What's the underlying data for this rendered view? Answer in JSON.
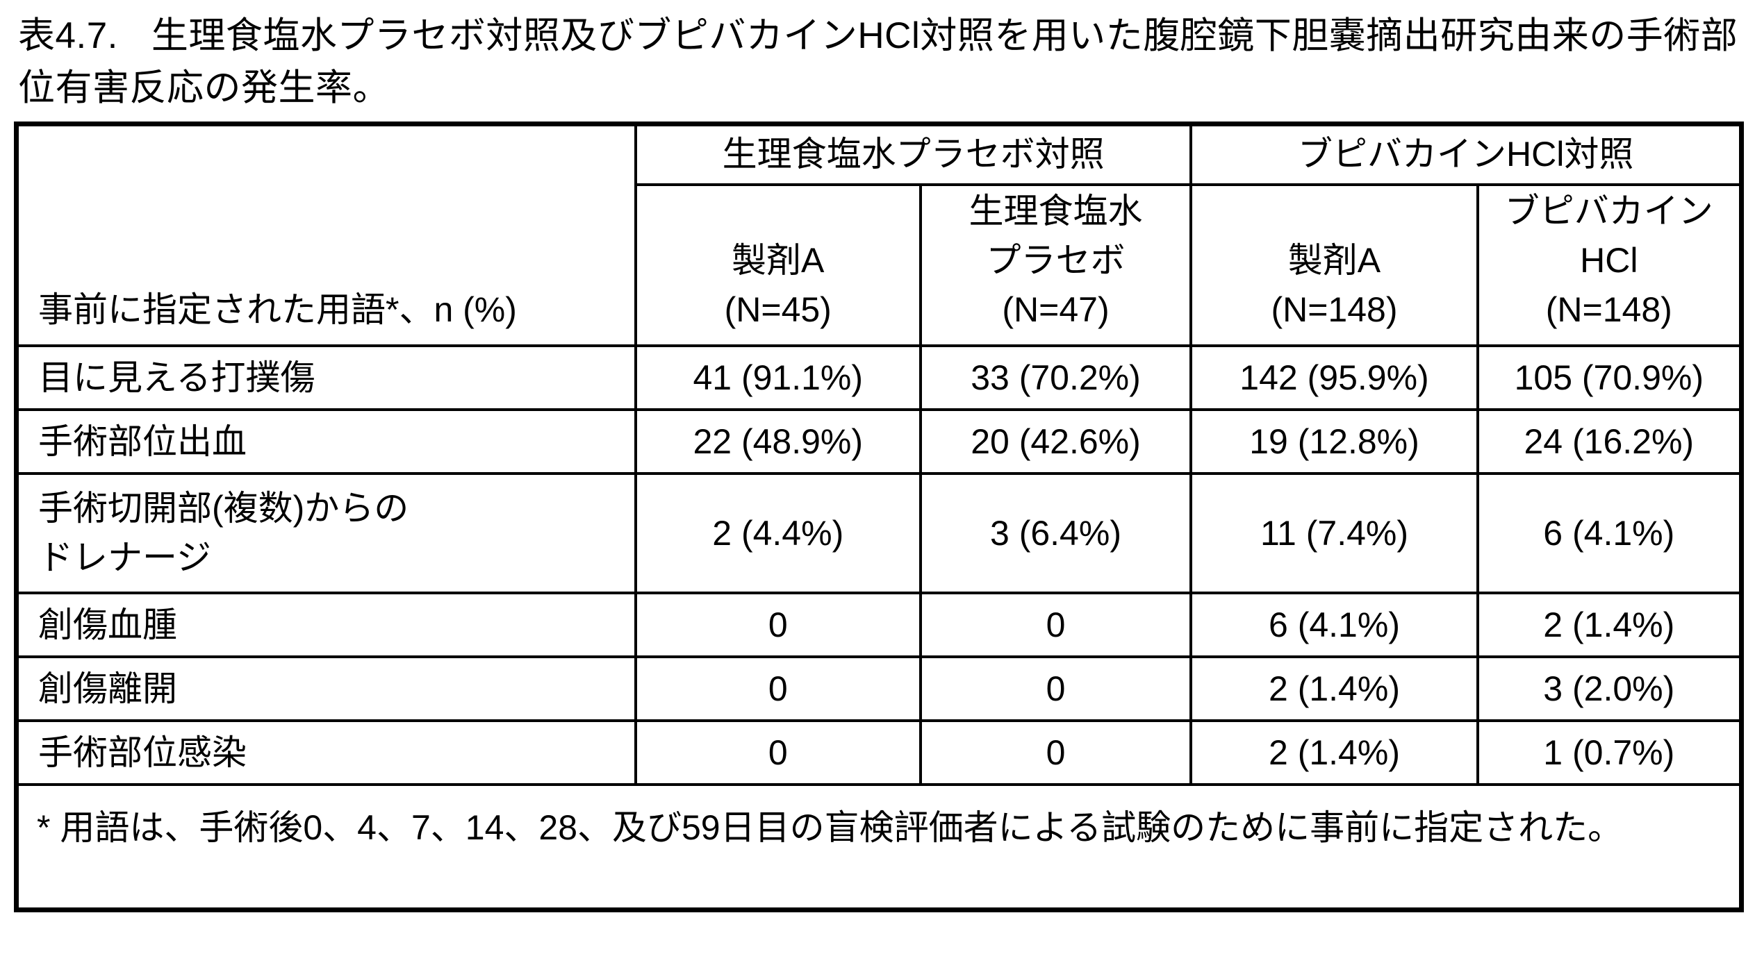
{
  "caption": {
    "label": "表4.7.",
    "text": "生理食塩水プラセボ対照及びブピバカインHCl対照を用いた腹腔鏡下胆嚢摘出研究由来の手術部位有害反応の発生率。"
  },
  "table": {
    "corner_header": "事前に指定された用語*、n (%)",
    "groups": [
      {
        "label": "生理食塩水プラセボ対照"
      },
      {
        "label": "ブピバカインHCl対照"
      }
    ],
    "column_headers": [
      "製剤A\n(N=45)",
      "生理食塩水\nプラセボ\n(N=47)",
      "製剤A\n(N=148)",
      "ブピバカイン\nHCl\n(N=148)"
    ],
    "rows": [
      {
        "label": "目に見える打撲傷",
        "values": [
          "41 (91.1%)",
          "33 (70.2%)",
          "142 (95.9%)",
          "105 (70.9%)"
        ]
      },
      {
        "label": "手術部位出血",
        "values": [
          "22 (48.9%)",
          "20 (42.6%)",
          "19 (12.8%)",
          "24 (16.2%)"
        ]
      },
      {
        "label": "手術切開部(複数)からの\nドレナージ",
        "values": [
          "2 (4.4%)",
          "3 (6.4%)",
          "11 (7.4%)",
          "6 (4.1%)"
        ]
      },
      {
        "label": "創傷血腫",
        "values": [
          "0",
          "0",
          "6 (4.1%)",
          "2 (1.4%)"
        ]
      },
      {
        "label": "創傷離開",
        "values": [
          "0",
          "0",
          "2 (1.4%)",
          "3 (2.0%)"
        ]
      },
      {
        "label": "手術部位感染",
        "values": [
          "0",
          "0",
          "2 (1.4%)",
          "1 (0.7%)"
        ]
      }
    ],
    "footnote": "* 用語は、手術後0、4、7、14、28、及び59日目の盲検評価者による試験のために事前に指定された。"
  }
}
